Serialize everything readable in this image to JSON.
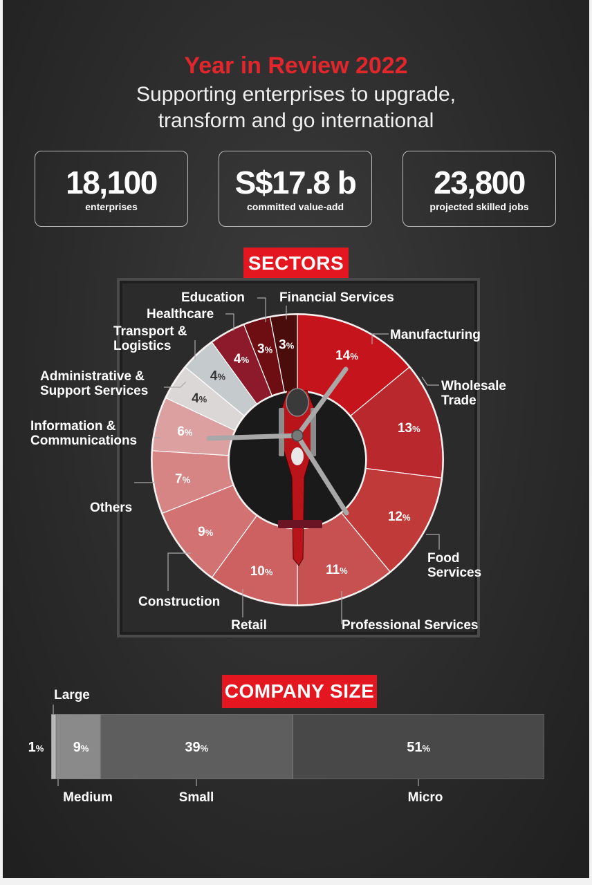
{
  "header": {
    "title": "Year in Review 2022",
    "subtitle_line1": "Supporting enterprises to upgrade,",
    "subtitle_line2": "transform and go international"
  },
  "stats": [
    {
      "value": "18,100",
      "label": "enterprises"
    },
    {
      "value": "S$17.8 b",
      "label": "committed value-add"
    },
    {
      "value": "23,800",
      "label": "projected skilled jobs"
    }
  ],
  "chart_data": [
    {
      "type": "pie",
      "title": "SECTORS",
      "categories": [
        "Manufacturing",
        "Wholesale Trade",
        "Food Services",
        "Professional Services",
        "Retail",
        "Construction",
        "Others",
        "Information & Communications",
        "Administrative & Support Services",
        "Transport & Logistics",
        "Healthcare",
        "Education",
        "Financial Services"
      ],
      "values": [
        14,
        13,
        12,
        11,
        10,
        9,
        7,
        6,
        4,
        4,
        4,
        3,
        3
      ],
      "value_labels": [
        "14%",
        "13%",
        "12%",
        "11%",
        "10%",
        "9%",
        "7%",
        "6%",
        "4%",
        "4%",
        "4%",
        "3%",
        "3%"
      ],
      "colors": [
        "#c5141c",
        "#b8282c",
        "#c03a3a",
        "#c75050",
        "#cd6060",
        "#d27272",
        "#d68484",
        "#dca0a0",
        "#dcd7d7",
        "#c5cacd",
        "#8c1a2a",
        "#6e0d12",
        "#4a0d0b"
      ]
    },
    {
      "type": "bar",
      "title": "COMPANY SIZE",
      "categories": [
        "Large",
        "Medium",
        "Small",
        "Micro"
      ],
      "values": [
        1,
        9,
        39,
        51
      ],
      "value_labels": [
        "1%",
        "9%",
        "39%",
        "51%"
      ]
    }
  ]
}
